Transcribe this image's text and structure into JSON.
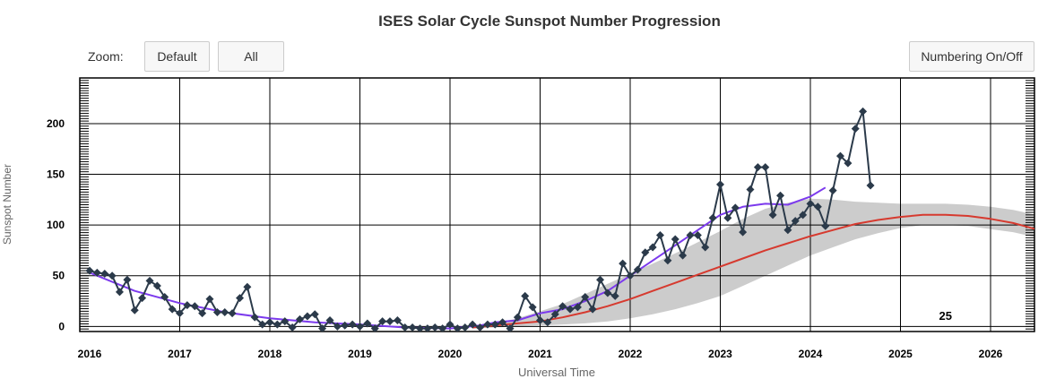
{
  "header": {
    "title": "ISES Solar Cycle Sunspot Number Progression"
  },
  "controls": {
    "zoom_label": "Zoom:",
    "default_label": "Default",
    "all_label": "All",
    "numbering_label": "Numbering On/Off"
  },
  "chart_data": {
    "type": "line",
    "title": "ISES Solar Cycle Sunspot Number Progression",
    "xlabel": "Universal Time",
    "ylabel": "Sunspot Number",
    "xlim": [
      2016.0,
      2026.5
    ],
    "ylim": [
      -5,
      245
    ],
    "x_ticks": [
      "2016",
      "2017",
      "2018",
      "2019",
      "2020",
      "2021",
      "2022",
      "2023",
      "2024",
      "2025",
      "2026"
    ],
    "y_ticks": [
      "0",
      "50",
      "100",
      "150",
      "200"
    ],
    "grid": true,
    "annotation": "25",
    "colors": {
      "monthly": "#2b3a4a",
      "smoothed": "#7c3aed",
      "predicted": "#d63a2f",
      "band": "#cccccc",
      "grid": "#000000"
    },
    "series": [
      {
        "style": "monthly",
        "x": [
          2016.0,
          2016.083,
          2016.167,
          2016.25,
          2016.333,
          2016.417,
          2016.5,
          2016.583,
          2016.667,
          2016.75,
          2016.833,
          2016.917,
          2017.0,
          2017.083,
          2017.167,
          2017.25,
          2017.333,
          2017.417,
          2017.5,
          2017.583,
          2017.667,
          2017.75,
          2017.833,
          2017.917,
          2018.0,
          2018.083,
          2018.167,
          2018.25,
          2018.333,
          2018.417,
          2018.5,
          2018.583,
          2018.667,
          2018.75,
          2018.833,
          2018.917,
          2019.0,
          2019.083,
          2019.167,
          2019.25,
          2019.333,
          2019.417,
          2019.5,
          2019.583,
          2019.667,
          2019.75,
          2019.833,
          2019.917,
          2020.0,
          2020.083,
          2020.167,
          2020.25,
          2020.333,
          2020.417,
          2020.5,
          2020.583,
          2020.667,
          2020.75,
          2020.833,
          2020.917,
          2021.0,
          2021.083,
          2021.167,
          2021.25,
          2021.333,
          2021.417,
          2021.5,
          2021.583,
          2021.667,
          2021.75,
          2021.833,
          2021.917,
          2022.0,
          2022.083,
          2022.167,
          2022.25,
          2022.333,
          2022.417,
          2022.5,
          2022.583,
          2022.667,
          2022.75,
          2022.833,
          2022.917,
          2023.0,
          2023.083,
          2023.167,
          2023.25,
          2023.333,
          2023.417,
          2023.5,
          2023.583,
          2023.667,
          2023.75,
          2023.833,
          2023.917,
          2024.0,
          2024.083,
          2024.167,
          2024.25,
          2024.333,
          2024.417,
          2024.5,
          2024.583,
          2024.667
        ],
        "y": [
          55,
          53,
          52,
          50,
          34,
          46,
          16,
          28,
          45,
          40,
          29,
          17,
          13,
          21,
          20,
          13,
          27,
          14,
          14,
          13,
          28,
          39,
          9,
          2,
          4,
          2,
          5,
          -1,
          7,
          10,
          12,
          -2,
          6,
          0,
          1,
          2,
          0,
          3,
          -2,
          5,
          5,
          6,
          -1,
          -1,
          -2,
          -2,
          -1,
          -2,
          2,
          -2,
          -1,
          2,
          -1,
          2,
          2,
          4,
          -2,
          9,
          30,
          19,
          6,
          4,
          12,
          20,
          17,
          19,
          29,
          17,
          46,
          33,
          30,
          62,
          50,
          56,
          73,
          78,
          90,
          65,
          86,
          70,
          90,
          90,
          78,
          107,
          140,
          107,
          117,
          93,
          135,
          157,
          157,
          110,
          129,
          95,
          104,
          110,
          121,
          118,
          99,
          134,
          168,
          161,
          195,
          212,
          139
        ]
      },
      {
        "style": "smoothed",
        "x": [
          2016.0,
          2016.5,
          2017.0,
          2017.5,
          2018.0,
          2018.5,
          2019.0,
          2019.5,
          2020.0,
          2020.333,
          2020.5,
          2020.75,
          2021.0,
          2021.25,
          2021.5,
          2021.75,
          2022.0,
          2022.25,
          2022.5,
          2022.75,
          2023.0,
          2023.25,
          2023.5,
          2023.75,
          2024.0,
          2024.167
        ],
        "y": [
          53,
          35,
          23,
          14,
          8,
          4,
          2,
          -1,
          -2,
          1,
          4,
          6,
          13,
          17,
          25,
          35,
          50,
          65,
          80,
          95,
          110,
          118,
          121,
          120,
          128,
          137
        ]
      },
      {
        "style": "predicted",
        "x": [
          2020.25,
          2020.5,
          2020.75,
          2021.0,
          2021.25,
          2021.5,
          2021.75,
          2022.0,
          2022.25,
          2022.5,
          2022.75,
          2023.0,
          2023.25,
          2023.5,
          2023.75,
          2024.0,
          2024.25,
          2024.5,
          2024.75,
          2025.0,
          2025.25,
          2025.5,
          2025.75,
          2026.0,
          2026.25,
          2026.5
        ],
        "y": [
          -1,
          1,
          3,
          5,
          9,
          14,
          20,
          27,
          35,
          43,
          51,
          59,
          67,
          75,
          82,
          89,
          95,
          101,
          105,
          108,
          110,
          110,
          109,
          106,
          102,
          96
        ]
      },
      {
        "style": "band",
        "x": [
          2020.25,
          2020.5,
          2020.75,
          2021.0,
          2021.25,
          2021.5,
          2021.75,
          2022.0,
          2022.25,
          2022.5,
          2022.75,
          2023.0,
          2023.25,
          2023.5,
          2023.75,
          2024.0,
          2024.25,
          2024.5,
          2024.75,
          2025.0,
          2025.25,
          2025.5,
          2025.75,
          2026.0,
          2026.25,
          2026.5
        ],
        "upper": [
          0,
          3,
          8,
          15,
          22,
          32,
          42,
          52,
          62,
          72,
          83,
          94,
          106,
          116,
          122,
          126,
          125,
          123,
          122,
          121,
          121,
          121,
          120,
          118,
          115,
          110
        ],
        "lower": [
          -2,
          -1,
          0,
          1,
          2,
          3,
          5,
          8,
          12,
          17,
          23,
          30,
          40,
          50,
          60,
          70,
          78,
          86,
          92,
          97,
          100,
          100,
          99,
          96,
          93,
          88
        ]
      }
    ]
  }
}
